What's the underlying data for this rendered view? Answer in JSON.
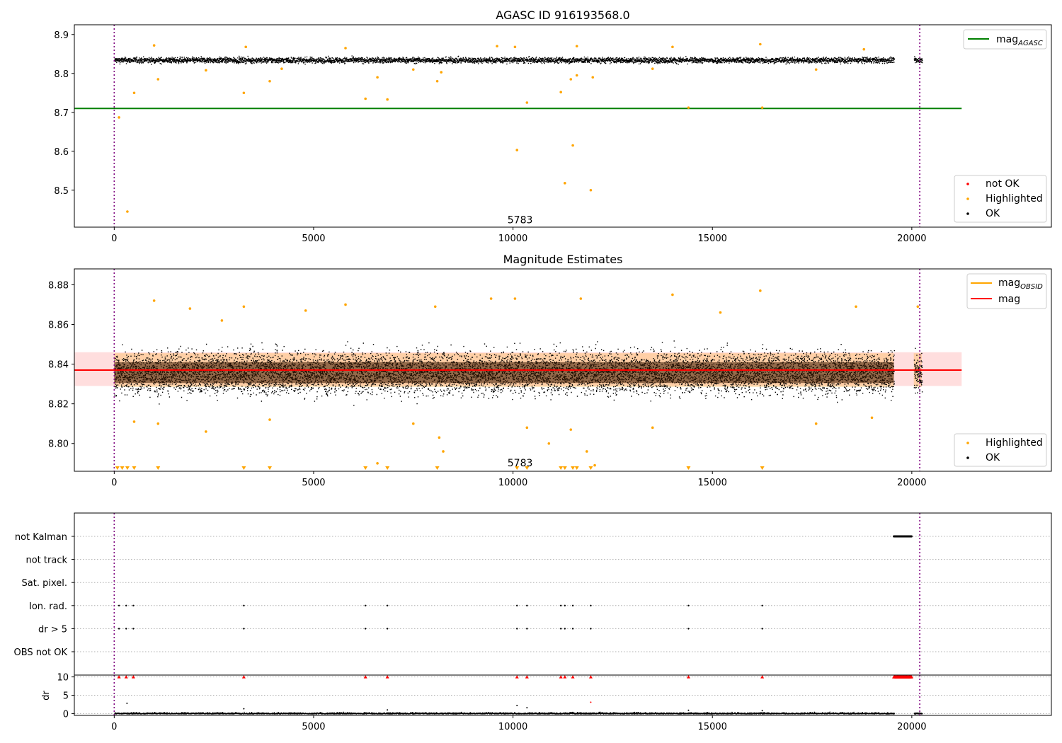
{
  "chart_data": [
    {
      "type": "scatter",
      "title": "AGASC ID 916193568.0",
      "xlabel": "",
      "ylabel": "",
      "xlim": [
        -1000,
        23500
      ],
      "ylim": [
        8.405,
        8.925
      ],
      "xticks": [
        0,
        5000,
        10000,
        15000,
        20000
      ],
      "xtick_labels": [
        "0",
        "5000",
        "10000",
        "15000",
        "20000"
      ],
      "yticks": [
        8.5,
        8.6,
        8.7,
        8.8,
        8.9
      ],
      "ytick_labels": [
        "8.5",
        "8.6",
        "8.7",
        "8.8",
        "8.9"
      ],
      "vlines": [
        0,
        20200
      ],
      "annotation": {
        "x": 10000,
        "y": 8.415,
        "text": "5783"
      },
      "reference_line": {
        "name": "mag",
        "subscript": "AGASC",
        "y": 8.71,
        "x_range": [
          -1000,
          21250
        ],
        "color": "#008000"
      },
      "ok_band": {
        "x_segments": [
          [
            0,
            19550
          ],
          [
            20050,
            20250
          ]
        ],
        "center": 8.835,
        "spread": 0.013,
        "color": "#000000"
      },
      "legend_upper": [
        {
          "name": "mag",
          "subscript": "AGASC",
          "color": "#008000"
        }
      ],
      "legend_lower": [
        {
          "name": "not OK",
          "color": "#ff0000"
        },
        {
          "name": "Highlighted",
          "color": "#ffa500"
        },
        {
          "name": "OK",
          "color": "#000000"
        }
      ],
      "highlighted_points": [
        {
          "x": 120,
          "y": 8.687
        },
        {
          "x": 330,
          "y": 8.445
        },
        {
          "x": 500,
          "y": 8.75
        },
        {
          "x": 1100,
          "y": 8.785
        },
        {
          "x": 3250,
          "y": 8.75
        },
        {
          "x": 3900,
          "y": 8.78
        },
        {
          "x": 6300,
          "y": 8.735
        },
        {
          "x": 6600,
          "y": 8.79
        },
        {
          "x": 6850,
          "y": 8.733
        },
        {
          "x": 8100,
          "y": 8.78
        },
        {
          "x": 8200,
          "y": 8.803
        },
        {
          "x": 10100,
          "y": 8.603
        },
        {
          "x": 10350,
          "y": 8.725
        },
        {
          "x": 11200,
          "y": 8.752
        },
        {
          "x": 11300,
          "y": 8.518
        },
        {
          "x": 11450,
          "y": 8.785
        },
        {
          "x": 11500,
          "y": 8.615
        },
        {
          "x": 11600,
          "y": 8.795
        },
        {
          "x": 11950,
          "y": 8.5
        },
        {
          "x": 12000,
          "y": 8.79
        },
        {
          "x": 14400,
          "y": 8.712
        },
        {
          "x": 16250,
          "y": 8.712
        },
        {
          "x": 1000,
          "y": 8.872
        },
        {
          "x": 3300,
          "y": 8.868
        },
        {
          "x": 5800,
          "y": 8.865
        },
        {
          "x": 9600,
          "y": 8.87
        },
        {
          "x": 10050,
          "y": 8.868
        },
        {
          "x": 11600,
          "y": 8.87
        },
        {
          "x": 14000,
          "y": 8.868
        },
        {
          "x": 16200,
          "y": 8.875
        },
        {
          "x": 18800,
          "y": 8.862
        },
        {
          "x": 4200,
          "y": 8.812
        },
        {
          "x": 7500,
          "y": 8.81
        },
        {
          "x": 17600,
          "y": 8.81
        },
        {
          "x": 13500,
          "y": 8.812
        },
        {
          "x": 2300,
          "y": 8.808
        }
      ]
    },
    {
      "type": "scatter",
      "title": "Magnitude Estimates",
      "xlabel": "",
      "ylabel": "",
      "xlim": [
        -1000,
        23500
      ],
      "ylim": [
        8.786,
        8.888
      ],
      "xticks": [
        0,
        5000,
        10000,
        15000,
        20000
      ],
      "xtick_labels": [
        "0",
        "5000",
        "10000",
        "15000",
        "20000"
      ],
      "yticks": [
        8.8,
        8.82,
        8.84,
        8.86,
        8.88
      ],
      "ytick_labels": [
        "8.80",
        "8.82",
        "8.84",
        "8.86",
        "8.88"
      ],
      "vlines": [
        0,
        20200
      ],
      "annotation": {
        "x": 10000,
        "y": 8.7885,
        "text": "5783"
      },
      "reference_line": {
        "name": "mag",
        "y": 8.837,
        "x_range": [
          -1000,
          21250
        ],
        "color": "#ff0000"
      },
      "mag_band": {
        "low": 8.829,
        "high": 8.846,
        "x_range": [
          -1000,
          21250
        ]
      },
      "obsid_band": {
        "x_segments": [
          [
            0,
            19550
          ],
          [
            20050,
            20250
          ]
        ],
        "low": 8.8285,
        "high": 8.8455,
        "color": "#ffa500"
      },
      "ok_band": {
        "x_segments": [
          [
            0,
            19550
          ],
          [
            20050,
            20250
          ]
        ],
        "center": 8.836,
        "spread": 0.0075,
        "color": "#000000"
      },
      "legend_upper": [
        {
          "name": "mag",
          "subscript": "OBSID",
          "color": "#ffa500"
        },
        {
          "name": "mag",
          "color": "#ff0000"
        }
      ],
      "legend_lower": [
        {
          "name": "Highlighted",
          "color": "#ffa500"
        },
        {
          "name": "OK",
          "color": "#000000"
        }
      ],
      "highlighted_points": [
        {
          "x": 1000,
          "y": 8.872
        },
        {
          "x": 1900,
          "y": 8.868
        },
        {
          "x": 3250,
          "y": 8.869
        },
        {
          "x": 4800,
          "y": 8.867
        },
        {
          "x": 5800,
          "y": 8.87
        },
        {
          "x": 8050,
          "y": 8.869
        },
        {
          "x": 9450,
          "y": 8.873
        },
        {
          "x": 10050,
          "y": 8.873
        },
        {
          "x": 11700,
          "y": 8.873
        },
        {
          "x": 14000,
          "y": 8.875
        },
        {
          "x": 16200,
          "y": 8.877
        },
        {
          "x": 18600,
          "y": 8.869
        },
        {
          "x": 20150,
          "y": 8.869
        },
        {
          "x": 500,
          "y": 8.811
        },
        {
          "x": 1100,
          "y": 8.81
        },
        {
          "x": 2300,
          "y": 8.806
        },
        {
          "x": 8150,
          "y": 8.803
        },
        {
          "x": 8250,
          "y": 8.796
        },
        {
          "x": 10350,
          "y": 8.808
        },
        {
          "x": 10900,
          "y": 8.8
        },
        {
          "x": 11450,
          "y": 8.807
        },
        {
          "x": 11850,
          "y": 8.796
        },
        {
          "x": 13500,
          "y": 8.808
        },
        {
          "x": 17600,
          "y": 8.81
        },
        {
          "x": 6600,
          "y": 8.79
        },
        {
          "x": 12050,
          "y": 8.789
        },
        {
          "x": 3900,
          "y": 8.812
        },
        {
          "x": 7500,
          "y": 8.81
        },
        {
          "x": 19000,
          "y": 8.813
        },
        {
          "x": 2700,
          "y": 8.862
        },
        {
          "x": 15200,
          "y": 8.866
        }
      ],
      "below_range_markers": [
        80,
        200,
        330,
        500,
        1100,
        3250,
        3900,
        6300,
        6850,
        8100,
        10100,
        10350,
        11200,
        11300,
        11500,
        11600,
        11950,
        14400,
        16250
      ]
    },
    {
      "type": "scatter",
      "title": "",
      "xlabel": "",
      "ylabel": "",
      "xlim": [
        -1000,
        23500
      ],
      "xticks": [
        0,
        5000,
        10000,
        15000,
        20000
      ],
      "xtick_labels": [
        "0",
        "5000",
        "10000",
        "15000",
        "20000"
      ],
      "vlines": [
        0,
        20200
      ],
      "flag_rows": [
        "not Kalman",
        "not track",
        "Sat. pixel.",
        "Ion. rad.",
        "dr > 5",
        "OBS not OK"
      ],
      "flag_points": {
        "not Kalman": {
          "segments": [
            [
              19550,
              20000
            ]
          ]
        },
        "not track": {
          "x": []
        },
        "Sat. pixel.": {
          "x": []
        },
        "Ion. rad.": {
          "x": [
            120,
            300,
            480,
            3250,
            6300,
            6850,
            10100,
            10350,
            11200,
            11300,
            11500,
            11950,
            14400,
            16250
          ]
        },
        "dr > 5": {
          "x": [
            120,
            300,
            480,
            3250,
            6300,
            6850,
            10100,
            10350,
            11200,
            11300,
            11500,
            11950,
            14400,
            16250
          ]
        },
        "OBS not OK": {
          "x": []
        }
      },
      "dr_panel": {
        "ylabel": "dr",
        "ylim": [
          -0.5,
          10.5
        ],
        "yticks": [
          0,
          5,
          10
        ],
        "ytick_labels": [
          "0",
          "5",
          "10"
        ],
        "capped_markers": [
          120,
          300,
          480,
          3250,
          6300,
          6850,
          10100,
          10350,
          11200,
          11300,
          11500,
          11950,
          14400,
          16250
        ],
        "capped_segment": [
          19550,
          20000
        ],
        "low_points": [
          {
            "x": 320,
            "y": 2.8
          },
          {
            "x": 11950,
            "y": 3.1
          },
          {
            "x": 10100,
            "y": 2.2
          },
          {
            "x": 3250,
            "y": 1.3
          },
          {
            "x": 6850,
            "y": 1.0
          },
          {
            "x": 14400,
            "y": 0.9
          },
          {
            "x": 10350,
            "y": 1.6
          },
          {
            "x": 16250,
            "y": 0.8
          }
        ]
      }
    }
  ]
}
